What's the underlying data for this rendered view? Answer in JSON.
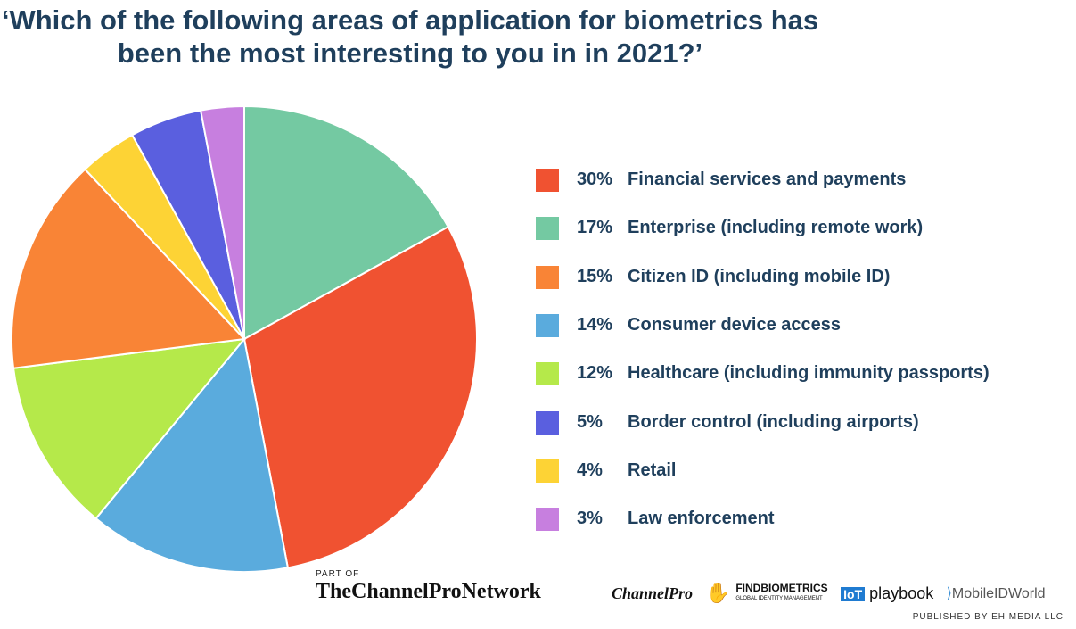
{
  "title": "‘Which of the following areas of application for biometrics has been the most interesting to you in in 2021?’",
  "chart_data": {
    "type": "pie",
    "title": "‘Which of the following areas of application for biometrics has been the most interesting to you in in 2021?’",
    "start_angle_deg": 0,
    "direction": "clockwise",
    "legend_position": "right",
    "slices": [
      {
        "label": "Enterprise (including remote work)",
        "value": 17,
        "percent_label": "17%",
        "color": "#74c9a2"
      },
      {
        "label": "Financial services and payments",
        "value": 30,
        "percent_label": "30%",
        "color": "#f05231"
      },
      {
        "label": "Consumer device access",
        "value": 14,
        "percent_label": "14%",
        "color": "#5aabdd"
      },
      {
        "label": "Healthcare (including immunity passports)",
        "value": 12,
        "percent_label": "12%",
        "color": "#b5e94a"
      },
      {
        "label": "Citizen ID (including mobile ID)",
        "value": 15,
        "percent_label": "15%",
        "color": "#f98436"
      },
      {
        "label": "Retail",
        "value": 4,
        "percent_label": "4%",
        "color": "#fdd335"
      },
      {
        "label": "Border control (including airports)",
        "value": 5,
        "percent_label": "5%",
        "color": "#5a5fdf"
      },
      {
        "label": "Law enforcement",
        "value": 3,
        "percent_label": "3%",
        "color": "#c77fdf"
      }
    ],
    "legend": [
      {
        "percent": "30%",
        "label": "Financial services and payments",
        "color": "#f05231"
      },
      {
        "percent": "17%",
        "label": "Enterprise (including remote work)",
        "color": "#74c9a2"
      },
      {
        "percent": "15%",
        "label": "Citizen ID (including mobile ID)",
        "color": "#f98436"
      },
      {
        "percent": "14%",
        "label": "Consumer device access",
        "color": "#5aabdd"
      },
      {
        "percent": "12%",
        "label": "Healthcare (including immunity passports)",
        "color": "#b5e94a"
      },
      {
        "percent": "5%",
        "label": "Border control (including airports)",
        "color": "#5a5fdf"
      },
      {
        "percent": "4%",
        "label": "Retail",
        "color": "#fdd335"
      },
      {
        "percent": "3%",
        "label": "Law enforcement",
        "color": "#c77fdf"
      }
    ]
  },
  "footer": {
    "part_of": "PART OF",
    "network": "TheChannelProNetwork",
    "logos": {
      "channelpro": "ChannelPro",
      "findbiometrics": "FINDBIOMETRICS",
      "findbiometrics_sub": "GLOBAL IDENTITY MANAGEMENT",
      "iot_box": "IoT",
      "iot_text": "playbook",
      "mobileid": "MobileIDWorld"
    },
    "published": "PUBLISHED BY EH MEDIA LLC"
  }
}
